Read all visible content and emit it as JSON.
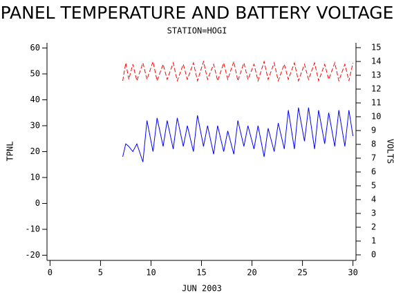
{
  "chart_data": {
    "type": "line",
    "title": "PANEL TEMPERATURE AND BATTERY VOLTAGE",
    "subtitle": "STATION=HOGI",
    "xlabel": "JUN 2003",
    "ylabel": "TPNL",
    "y2label": "VOLTS",
    "xlim": [
      -0.3,
      30.3
    ],
    "xticks": [
      0,
      5,
      10,
      15,
      20,
      25,
      30
    ],
    "ylim": [
      -22,
      62
    ],
    "yticks": [
      -20,
      -10,
      0,
      10,
      20,
      30,
      40,
      50,
      60
    ],
    "y2lim": [
      -0.4,
      15.35
    ],
    "y2ticks": [
      0,
      1,
      2,
      3,
      4,
      5,
      6,
      7,
      8,
      9,
      10,
      11,
      12,
      13,
      14,
      15
    ],
    "series": [
      {
        "name": "TPNL",
        "color": "#0000ff",
        "dashed": false,
        "x": [
          7.2,
          7.5,
          7.8,
          8.2,
          8.6,
          9.2,
          9.6,
          10.2,
          10.6,
          11.2,
          11.6,
          12.2,
          12.6,
          13.2,
          13.6,
          14.2,
          14.6,
          15.2,
          15.6,
          16.2,
          16.6,
          17.2,
          17.6,
          18.2,
          18.6,
          19.2,
          19.6,
          20.2,
          20.6,
          21.2,
          21.6,
          22.2,
          22.6,
          23.2,
          23.6,
          24.2,
          24.6,
          25.2,
          25.6,
          26.2,
          26.6,
          27.2,
          27.6,
          28.2,
          28.6,
          29.2,
          29.6,
          30.0
        ],
        "values": [
          18,
          23,
          22,
          20,
          23,
          16,
          32,
          20,
          33,
          22,
          32,
          21,
          33,
          22,
          30,
          20,
          34,
          22,
          30,
          19,
          30,
          20,
          28,
          19,
          32,
          22,
          30,
          21,
          30,
          18,
          29,
          20,
          31,
          21,
          36,
          21,
          37,
          24,
          37,
          21,
          36,
          23,
          35,
          22,
          36,
          22,
          36,
          26
        ]
      },
      {
        "name": "VOLTS",
        "color": "#ff0000",
        "dashed": true,
        "axis": "y2",
        "x": [
          7.2,
          7.5,
          7.8,
          8.2,
          8.6,
          9.2,
          9.6,
          10.2,
          10.6,
          11.2,
          11.6,
          12.2,
          12.6,
          13.2,
          13.6,
          14.2,
          14.6,
          15.2,
          15.6,
          16.2,
          16.6,
          17.2,
          17.6,
          18.2,
          18.6,
          19.2,
          19.6,
          20.2,
          20.6,
          21.2,
          21.6,
          22.2,
          22.6,
          23.2,
          23.6,
          24.2,
          24.6,
          25.2,
          25.6,
          26.2,
          26.6,
          27.2,
          27.6,
          28.2,
          28.6,
          29.2,
          29.6,
          30.0
        ],
        "values": [
          12.6,
          13.9,
          12.7,
          13.8,
          12.6,
          13.9,
          12.7,
          14.0,
          12.6,
          13.8,
          12.7,
          13.9,
          12.6,
          13.8,
          12.7,
          13.9,
          12.6,
          14.0,
          12.7,
          13.8,
          12.6,
          13.9,
          12.7,
          14.0,
          12.6,
          13.9,
          12.7,
          13.8,
          12.6,
          14.0,
          12.7,
          13.9,
          12.6,
          13.8,
          12.7,
          13.9,
          12.6,
          13.8,
          12.7,
          13.9,
          12.6,
          13.8,
          12.7,
          13.9,
          12.6,
          13.8,
          12.6,
          13.9
        ]
      }
    ]
  }
}
